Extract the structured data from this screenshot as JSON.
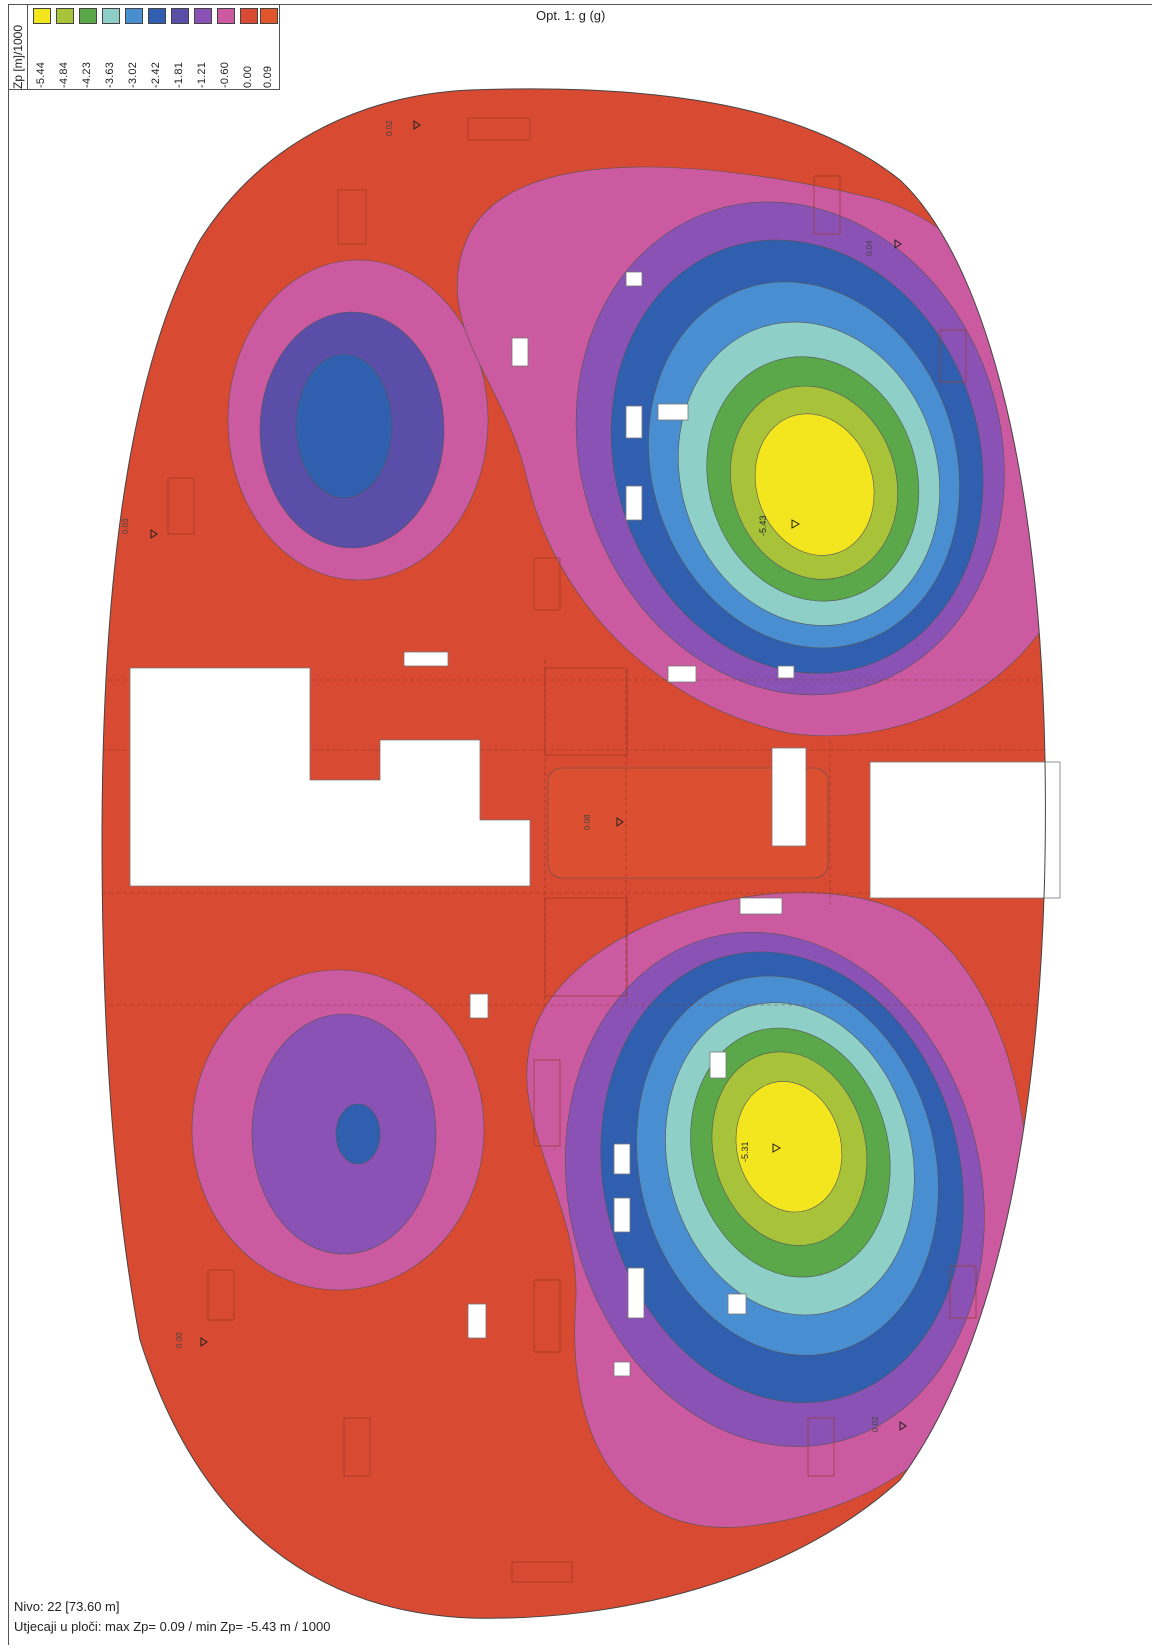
{
  "chart_title": "Opt. 1: g (g)",
  "legend": {
    "title": "Zp [m]/1000",
    "entries": [
      {
        "value": "-5.44",
        "color": "#f4e61e"
      },
      {
        "value": "-4.84",
        "color": "#a8c23a"
      },
      {
        "value": "-4.23",
        "color": "#5aa84a"
      },
      {
        "value": "-3.63",
        "color": "#8ed0c8"
      },
      {
        "value": "-3.02",
        "color": "#4a8ed2"
      },
      {
        "value": "-2.42",
        "color": "#2f5fae"
      },
      {
        "value": "-1.81",
        "color": "#5b4ea8"
      },
      {
        "value": "-1.21",
        "color": "#8a52b4"
      },
      {
        "value": "-0.60",
        "color": "#cc5aa0"
      },
      {
        "value": "0.00",
        "color": "#d84a32"
      },
      {
        "value": "0.09",
        "color": "#e0552a"
      }
    ]
  },
  "chart_data": {
    "type": "heatmap",
    "title": "Opt. 1: g (g)",
    "quantity": "Zp [m]/1000",
    "contour_levels": [
      -5.44,
      -4.84,
      -4.23,
      -3.63,
      -3.02,
      -2.42,
      -1.81,
      -1.21,
      -0.6,
      0.0,
      0.09
    ],
    "max": 0.09,
    "min": -5.43,
    "peak_labels": [
      "-5.43",
      "-5.31"
    ],
    "point_labels": [
      "0.02",
      "0.03",
      "0.00",
      "0.04",
      "0.02"
    ],
    "center_label": "0.08"
  },
  "footer": {
    "level": "Nivo: 22 [73.60 m]",
    "summary": "Utjecaji u ploči: max Zp= 0.09 / min Zp= -5.43 m / 1000"
  }
}
